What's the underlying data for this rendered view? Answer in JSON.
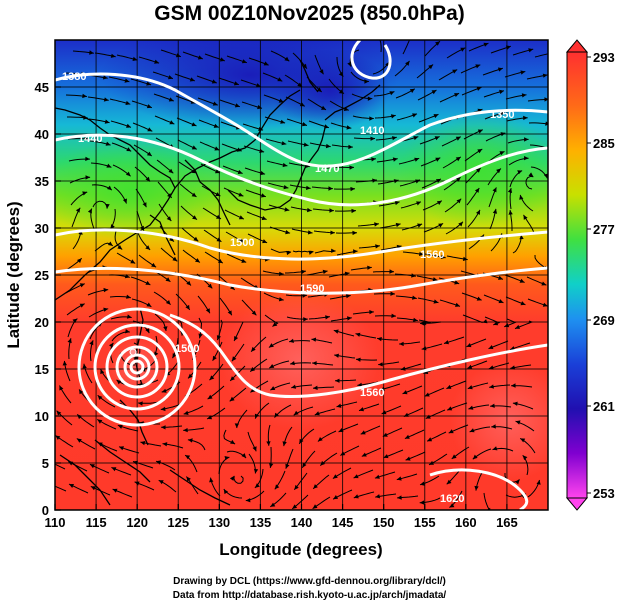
{
  "title": "GSM 00Z10Nov2025 (850.0hPa)",
  "footer": {
    "drawing_credit": "Drawing by DCL (https://www.gfd-dennou.org/library/dcl/)",
    "data_source": "Data from http://database.rish.kyoto-u.ac.jp/arch/jmadata/"
  },
  "map": {
    "variable": "temperature (K) with wind streamlines and geopotential contours",
    "x_axis": {
      "label": "Longitude (degrees)",
      "min": 110,
      "max": 170,
      "ticks": [
        110,
        115,
        120,
        125,
        130,
        135,
        140,
        145,
        150,
        155,
        160,
        165
      ]
    },
    "y_axis": {
      "label": "Latitude  (degrees)",
      "min": 0,
      "max": 50,
      "ticks": [
        0,
        5,
        10,
        15,
        20,
        25,
        30,
        35,
        40,
        45
      ]
    },
    "colorbar": {
      "min": 253,
      "max": 293,
      "tick_labels": [
        "293",
        "285",
        "277",
        "269",
        "261",
        "253"
      ],
      "colors": [
        "#ff44ee",
        "#7a00d0",
        "#1a1ac0",
        "#1e6ee8",
        "#10c8e8",
        "#28e070",
        "#60e010",
        "#c8e000",
        "#ffb000",
        "#ff6020",
        "#ff3030"
      ]
    },
    "contour_labels": [
      "1560",
      "1500",
      "1620",
      "1470",
      "1440",
      "1380",
      "1410",
      "1500",
      "1560",
      "1590",
      "1350"
    ],
    "typhoon_center": {
      "lon": 119.5,
      "lat": 16.8
    }
  }
}
